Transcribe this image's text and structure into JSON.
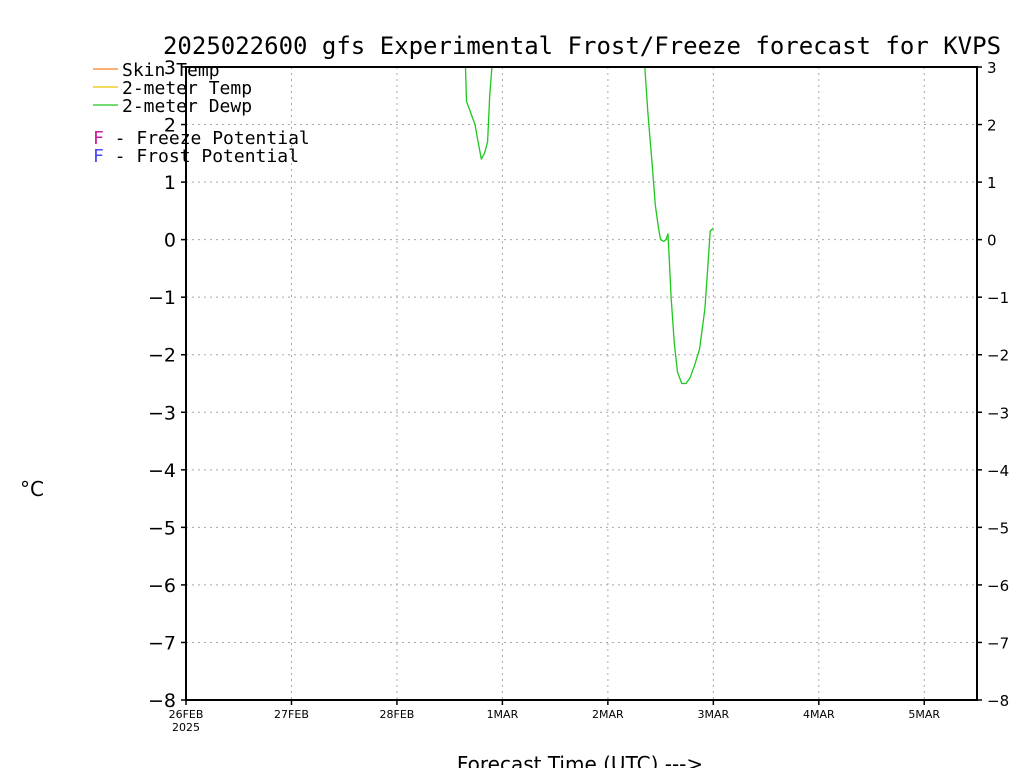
{
  "title": "2025022600 gfs Experimental Frost/Freeze forecast for KVPS",
  "ylabel": "°C",
  "xlabel": "Forecast Time (UTC) --->",
  "legend": {
    "series": [
      {
        "label": "Skin Temp",
        "color": "#ff7f1e"
      },
      {
        "label": "2-meter Temp",
        "color": "#e6c800"
      },
      {
        "label": "2-meter Dewp",
        "color": "#1ec81e"
      }
    ],
    "potential": [
      {
        "marker": "F",
        "label": " - Freeze Potential",
        "color": "#c81ea0"
      },
      {
        "marker": "F",
        "label": " - Frost Potential",
        "color": "#4646ff"
      }
    ]
  },
  "chart_data": {
    "type": "line",
    "title": "2025022600 gfs Experimental Frost/Freeze forecast for KVPS",
    "xlabel": "Forecast Time (UTC) --->",
    "ylabel": "°C",
    "ylim": [
      -8,
      3
    ],
    "xlim": [
      0,
      7.5
    ],
    "x_unit": "days since 26FEB2025 00Z",
    "yticks": [
      -8,
      -7,
      -6,
      -5,
      -4,
      -3,
      -2,
      -1,
      0,
      1,
      2,
      3
    ],
    "xticks": [
      {
        "pos": 0,
        "label": "26FEB",
        "sub": "2025"
      },
      {
        "pos": 1,
        "label": "27FEB",
        "sub": ""
      },
      {
        "pos": 2,
        "label": "28FEB",
        "sub": ""
      },
      {
        "pos": 3,
        "label": "1MAR",
        "sub": ""
      },
      {
        "pos": 4,
        "label": "2MAR",
        "sub": ""
      },
      {
        "pos": 5,
        "label": "3MAR",
        "sub": ""
      },
      {
        "pos": 6,
        "label": "4MAR",
        "sub": ""
      },
      {
        "pos": 7,
        "label": "5MAR",
        "sub": ""
      }
    ],
    "grid": true,
    "legend_position": "top-left",
    "series": [
      {
        "name": "Skin Temp",
        "color": "#ff7f1e",
        "segments": []
      },
      {
        "name": "2-meter Temp",
        "color": "#e6c800",
        "segments": []
      },
      {
        "name": "2-meter Dewp",
        "color": "#1ec81e",
        "segments": [
          [
            [
              2.65,
              3.0
            ],
            [
              2.66,
              2.4
            ],
            [
              2.7,
              2.2
            ],
            [
              2.74,
              2.0
            ],
            [
              2.77,
              1.7
            ],
            [
              2.8,
              1.4
            ],
            [
              2.83,
              1.5
            ],
            [
              2.86,
              1.7
            ],
            [
              2.88,
              2.5
            ],
            [
              2.9,
              3.0
            ]
          ],
          [
            [
              4.35,
              3.0
            ],
            [
              4.38,
              2.2
            ],
            [
              4.42,
              1.3
            ],
            [
              4.45,
              0.6
            ],
            [
              4.48,
              0.2
            ],
            [
              4.5,
              0.0
            ],
            [
              4.53,
              -0.03
            ],
            [
              4.55,
              0.0
            ],
            [
              4.57,
              0.1
            ],
            [
              4.6,
              -1.0
            ],
            [
              4.63,
              -1.8
            ],
            [
              4.66,
              -2.3
            ],
            [
              4.7,
              -2.5
            ],
            [
              4.74,
              -2.5
            ],
            [
              4.78,
              -2.4
            ],
            [
              4.82,
              -2.2
            ],
            [
              4.87,
              -1.9
            ],
            [
              4.92,
              -1.2
            ],
            [
              4.95,
              -0.4
            ],
            [
              4.97,
              0.15
            ],
            [
              5.0,
              0.2
            ]
          ]
        ]
      }
    ]
  }
}
